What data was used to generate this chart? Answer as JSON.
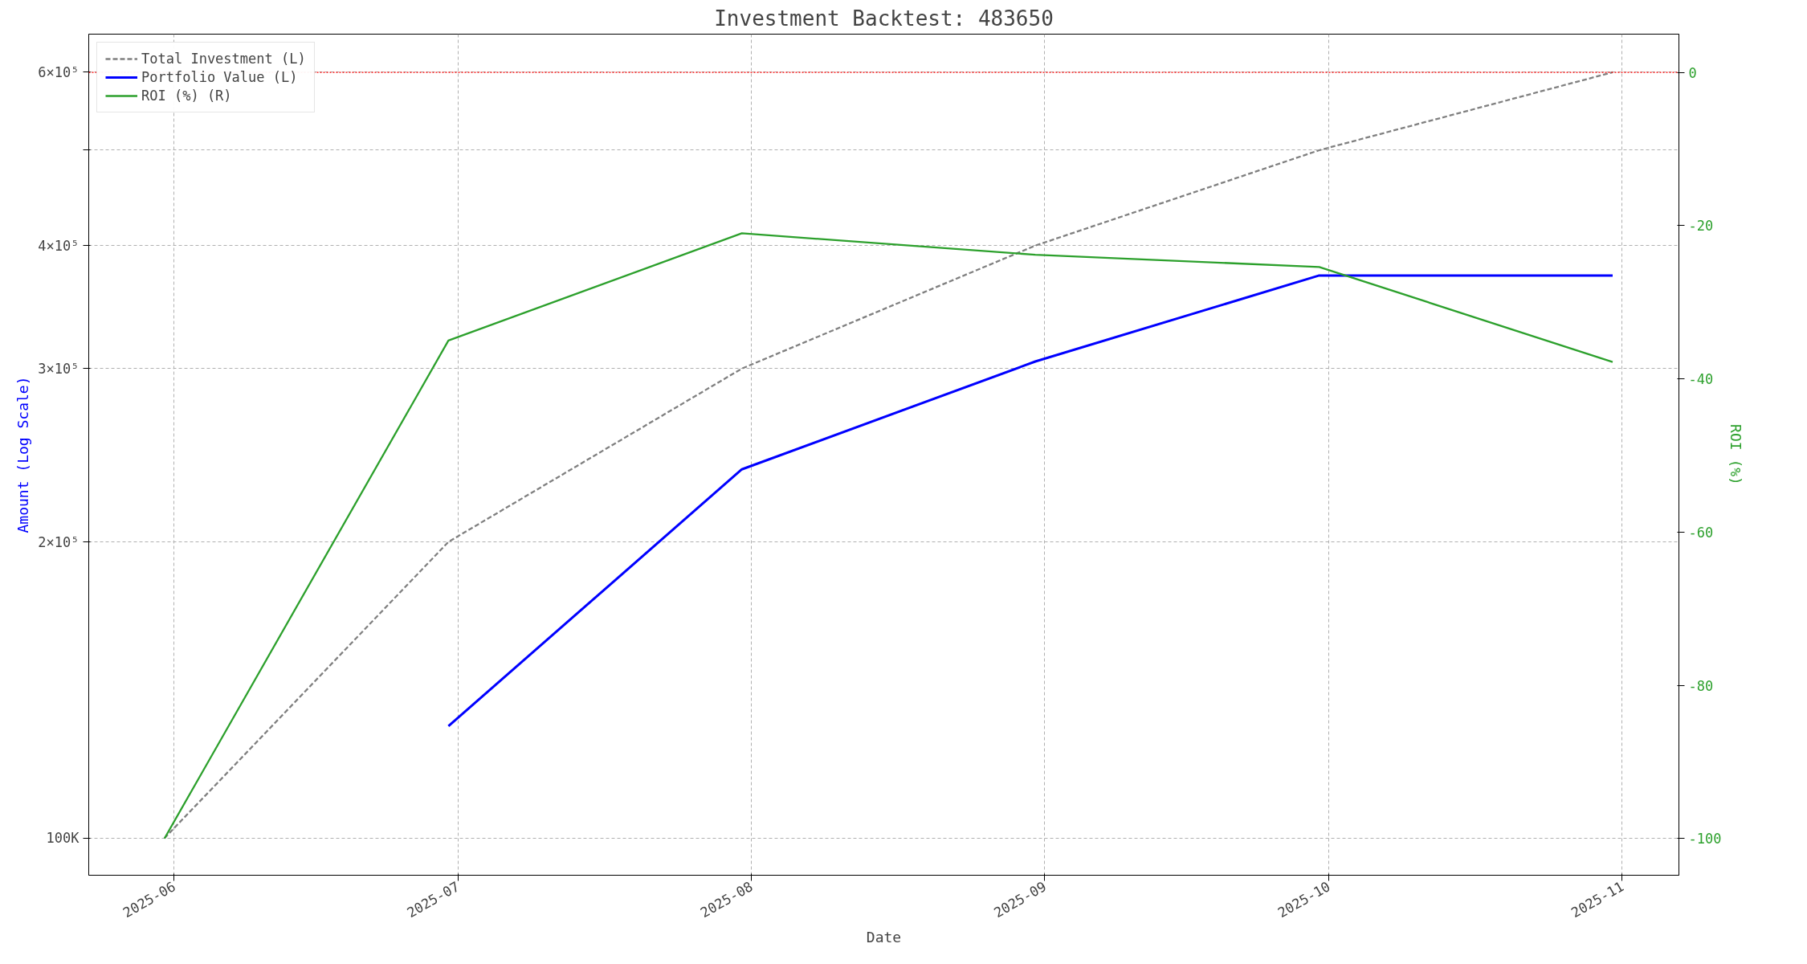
{
  "chart_data": {
    "type": "line",
    "title": "Investment Backtest: 483650",
    "xlabel": "Date",
    "ylabel": "Amount (Log Scale)",
    "y2label": "ROI (%)",
    "x": [
      "2025-05-31",
      "2025-06-30",
      "2025-07-31",
      "2025-08-31",
      "2025-09-30",
      "2025-10-31"
    ],
    "series": [
      {
        "name": "Total Investment (L)",
        "color": "#808080",
        "line_style": "dashed",
        "values": [
          100000,
          200000,
          300000,
          400000,
          500000,
          600000
        ]
      },
      {
        "name": "Portfolio Value (L)",
        "color": "#0000ff",
        "line_style": "solid",
        "values": [
          null,
          130000,
          237000,
          305000,
          373000,
          373000
        ]
      },
      {
        "name": "ROI (%) (R)",
        "color": "#2ca02c",
        "line_style": "solid",
        "axis": "y2",
        "values": [
          -100,
          -35,
          -21,
          -23.8,
          -25.4,
          -37.8
        ]
      }
    ],
    "log": "y",
    "xlim": [
      "2025-05-23",
      "2025-11-07"
    ],
    "xticks": [
      {
        "value": "2025-06-01",
        "label": "2025-06"
      },
      {
        "value": "2025-07-01",
        "label": "2025-07"
      },
      {
        "value": "2025-08-01",
        "label": "2025-08"
      },
      {
        "value": "2025-09-01",
        "label": "2025-09"
      },
      {
        "value": "2025-10-01",
        "label": "2025-10"
      },
      {
        "value": "2025-11-01",
        "label": "2025-11"
      }
    ],
    "ylim": [
      91700,
      656000
    ],
    "yticks": [
      {
        "value": 100000,
        "label": "100K"
      },
      {
        "value": 200000,
        "label": "2×10⁵"
      },
      {
        "value": 300000,
        "label": "3×10⁵"
      },
      {
        "value": 400000,
        "label": "4×10⁵"
      },
      {
        "value": 500000,
        "label": null
      },
      {
        "value": 600000,
        "label": "6×10⁵"
      }
    ],
    "y2lim": [
      -104.8,
      5.0
    ],
    "y2ticks": [
      -100,
      -80,
      -60,
      -40,
      -20,
      0
    ],
    "ref_lines": [
      {
        "axis": "y2",
        "value": 0,
        "label": null,
        "color": "#ff0000",
        "line_style": "dotted"
      }
    ],
    "grid": true,
    "legend": "top left"
  }
}
